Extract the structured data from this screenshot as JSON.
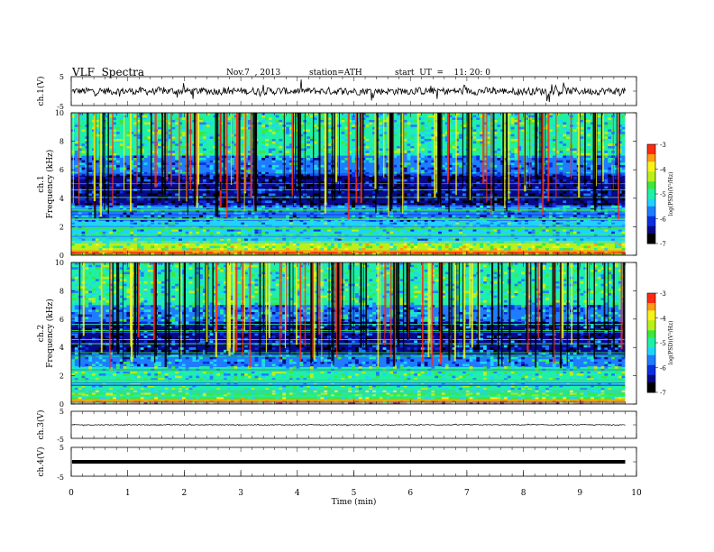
{
  "header": {
    "title": "VLF  Spectra",
    "date": "Nov.7  , 2013",
    "station": "station=ATH",
    "start": "start  UT  =    11: 20: 0"
  },
  "colors": {
    "colormap": [
      "#000000",
      "#08088a",
      "#0a2fe0",
      "#1e7dff",
      "#1fd3ff",
      "#1ff0a8",
      "#3ce83c",
      "#b8f01a",
      "#f7f21a",
      "#ff9a12",
      "#ff2a12",
      "#c90d1a",
      "#ffffff"
    ]
  },
  "chart_data": [
    {
      "type": "line",
      "panel": "ch1",
      "ylabel": "ch.1(V)",
      "ylim": [
        -5,
        5
      ],
      "yticks": [
        "5",
        "-5"
      ],
      "description_values": {
        "baseline_V": 0.0,
        "noise_amplitude_V": 1.5
      }
    },
    {
      "type": "heatmap",
      "panel": "spec1",
      "ylabel_line1": "ch.1",
      "ylabel_line2": "Frequency  (kHz)",
      "ylim": [
        0,
        10
      ],
      "yticks": [
        "0",
        "2",
        "4",
        "6",
        "8",
        "10"
      ],
      "xlim": [
        0,
        9.8
      ],
      "colorbar_label": "log(PSD)(V²/Hz)",
      "colorbar_ticks": [
        "-3",
        "-4",
        "-5",
        "-6",
        "-7"
      ],
      "zlim": [
        -7,
        -3
      ],
      "bands_kHz": [
        {
          "from": 0.0,
          "to": 0.3,
          "level": -3.3
        },
        {
          "from": 0.3,
          "to": 1.0,
          "level": -4.4
        },
        {
          "from": 1.0,
          "to": 2.4,
          "level": -5.2
        },
        {
          "from": 2.4,
          "to": 3.5,
          "level": -5.8
        },
        {
          "from": 3.5,
          "to": 5.6,
          "level": -6.5
        },
        {
          "from": 5.6,
          "to": 7.0,
          "level": -5.6
        },
        {
          "from": 7.0,
          "to": 10.0,
          "level": -5.0
        }
      ]
    },
    {
      "type": "heatmap",
      "panel": "spec2",
      "ylabel_line1": "ch.2",
      "ylabel_line2": "Frequency  (kHz)",
      "ylim": [
        0,
        10
      ],
      "yticks": [
        "0",
        "2",
        "4",
        "6",
        "8",
        "10"
      ],
      "xlim": [
        0,
        9.8
      ],
      "colorbar_label": "log(PSD)(V²/Hz)",
      "colorbar_ticks": [
        "-3",
        "-4",
        "-5",
        "-6",
        "-7"
      ],
      "zlim": [
        -7,
        -3
      ],
      "bands_kHz": [
        {
          "from": 0.0,
          "to": 0.3,
          "level": -3.5
        },
        {
          "from": 0.3,
          "to": 1.0,
          "level": -4.6
        },
        {
          "from": 1.0,
          "to": 2.6,
          "level": -5.0
        },
        {
          "from": 2.6,
          "to": 3.4,
          "level": -5.6
        },
        {
          "from": 3.4,
          "to": 5.8,
          "level": -6.3
        },
        {
          "from": 5.8,
          "to": 7.0,
          "level": -5.6
        },
        {
          "from": 7.0,
          "to": 10.0,
          "level": -5.0
        }
      ]
    },
    {
      "type": "line",
      "panel": "ch3",
      "ylabel": "ch.3(V)",
      "ylim": [
        -5,
        5
      ],
      "yticks": [
        "5",
        "-5"
      ],
      "description_values": {
        "baseline_V": 0.0,
        "noise_amplitude_V": 0.1
      }
    },
    {
      "type": "line",
      "panel": "ch4",
      "ylabel": "ch.4(V)",
      "ylim": [
        -5,
        5
      ],
      "yticks": [
        "5",
        "-5"
      ],
      "description_values": {
        "baseline_V": 0.0,
        "noise_amplitude_V": 0.0
      }
    }
  ],
  "xaxis": {
    "label": "Time  (min)",
    "xlim": [
      0,
      10
    ],
    "ticks": [
      "0",
      "1",
      "2",
      "3",
      "4",
      "5",
      "6",
      "7",
      "8",
      "9",
      "10"
    ]
  }
}
